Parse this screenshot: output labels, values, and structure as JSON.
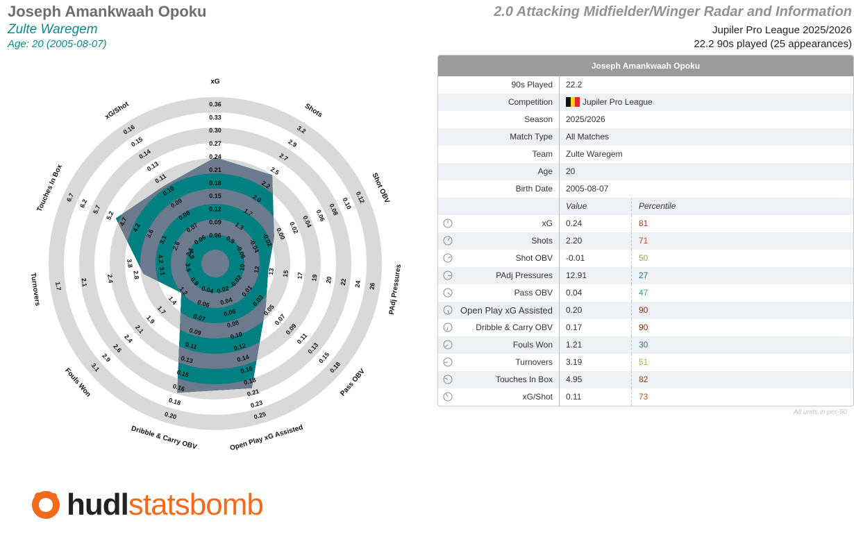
{
  "header": {
    "player_name": "Joseph Amankwaah Opoku",
    "team": "Zulte Waregem",
    "age_line": "Age: 20 (2005-08-07)",
    "radar_title": "2.0 Attacking Midfielder/Winger Radar and Information",
    "competition_line": "Jupiler Pro League 2025/2026",
    "minutes_line": "22.2 90s played (25 appearances)"
  },
  "colors": {
    "teal": "#008080",
    "slate": "#6b7a8c",
    "ring_gray": "#d8d8d8",
    "brand_orange": "#f26b1d"
  },
  "chart_data": {
    "type": "radar",
    "axes": [
      {
        "label": "xG",
        "ticks": [
          "0.06",
          "0.09",
          "0.12",
          "0.15",
          "0.18",
          "0.21",
          "0.24",
          "0.27",
          "0.30",
          "0.33",
          "0.36"
        ],
        "min": 0.03,
        "max": 0.36,
        "value": 0.24
      },
      {
        "label": "Shots",
        "ticks": [
          "0.9",
          "1.3",
          "1.7",
          "2.0",
          "2.2",
          "2.5",
          "2.7",
          "2.9",
          "3.2"
        ],
        "min": 0.5,
        "max": 3.2,
        "value": 2.2
      },
      {
        "label": "Shot OBV",
        "ticks": [
          "-0.06",
          "-0.04",
          "-0.02",
          "0.00",
          "0.02",
          "0.04",
          "0.06",
          "0.08",
          "0.10",
          "0.12"
        ],
        "min": -0.08,
        "max": 0.12,
        "value": -0.01
      },
      {
        "label": "PAdj Pressures",
        "ticks": [
          "10",
          "12",
          "13",
          "15",
          "17",
          "19",
          "20",
          "22",
          "24",
          "26"
        ],
        "min": 8,
        "max": 26,
        "value": 12.91
      },
      {
        "label": "Pass OBV",
        "ticks": [
          "-0.02",
          "0.01",
          "0.03",
          "0.05",
          "0.07",
          "0.09",
          "0.11",
          "0.13",
          "0.15",
          "0.18"
        ],
        "min": -0.04,
        "max": 0.18,
        "value": 0.04
      },
      {
        "label": "Open Play xG Assisted",
        "ticks": [
          "0.02",
          "0.04",
          "0.06",
          "0.08",
          "0.10",
          "0.12",
          "0.14",
          "0.16",
          "0.18",
          "0.21",
          "0.23",
          "0.25"
        ],
        "min": 0.0,
        "max": 0.25,
        "value": 0.2
      },
      {
        "label": "Dribble & Carry OBV",
        "ticks": [
          "0.04",
          "0.06",
          "0.07",
          "0.09",
          "0.11",
          "0.13",
          "0.15",
          "0.16",
          "0.18",
          "0.20"
        ],
        "min": 0.02,
        "max": 0.2,
        "value": 0.17
      },
      {
        "label": "Fouls Won",
        "ticks": [
          "0.9",
          "1.2",
          "1.4",
          "1.7",
          "1.9",
          "2.1",
          "2.4",
          "2.6",
          "2.9",
          "3.1"
        ],
        "min": 0.7,
        "max": 3.1,
        "value": 1.21
      },
      {
        "label": "Turnovers",
        "ticks": [
          "3.5",
          "3.1",
          "2.8",
          "2.4",
          "2.1",
          "1.7"
        ],
        "min": 4.2,
        "max": 1.7,
        "value": 3.19
      },
      {
        "label": "Touches In Box",
        "ticks": [
          "2.1",
          "2.6",
          "3.1",
          "3.6",
          "4.2",
          "4.7",
          "5.2",
          "5.7",
          "6.2",
          "6.7"
        ],
        "min": 1.6,
        "max": 6.7,
        "value": 4.95
      },
      {
        "label": "xG/Shot",
        "ticks": [
          "0.06",
          "0.07",
          "0.08",
          "0.09",
          "0.10",
          "0.11",
          "0.13",
          "0.14",
          "0.15",
          "0.16"
        ],
        "min": 0.05,
        "max": 0.16,
        "value": 0.11
      }
    ],
    "extra_tick_labels": {
      "Turnovers": [
        "4.9",
        "4.2",
        "3.8"
      ]
    },
    "grid": true
  },
  "table": {
    "title": "Joseph Amankwaah Opoku",
    "info_rows": [
      {
        "label": "90s Played",
        "value": "22.2"
      },
      {
        "label": "Competition",
        "value": "Jupiler Pro League",
        "flag": true
      },
      {
        "label": "Season",
        "value": "2025/2026"
      },
      {
        "label": "Match Type",
        "value": "All Matches"
      },
      {
        "label": "Team",
        "value": "Zulte Waregem"
      },
      {
        "label": "Age",
        "value": "20"
      },
      {
        "label": "Birth Date",
        "value": "2005-08-07"
      }
    ],
    "col_value": "Value",
    "col_percentile": "Percentile",
    "metric_rows": [
      {
        "label": "xG",
        "value": "0.24",
        "percentile": "81",
        "color": "#a33a1a",
        "icon": "xg-icon"
      },
      {
        "label": "Shots",
        "value": "2.20",
        "percentile": "71",
        "color": "#b8541f",
        "icon": "shots-icon"
      },
      {
        "label": "Shot OBV",
        "value": "-0.01",
        "percentile": "50",
        "color": "#9cae3a",
        "icon": "shot-obv-icon"
      },
      {
        "label": "PAdj Pressures",
        "value": "12.91",
        "percentile": "27",
        "color": "#2e6d8e",
        "icon": "pressures-icon"
      },
      {
        "label": "Pass OBV",
        "value": "0.04",
        "percentile": "47",
        "color": "#3aa89c",
        "icon": "pass-obv-icon"
      },
      {
        "label": "Open Play xG Assisted",
        "value": "0.20",
        "percentile": "90",
        "color": "#8b1d0f",
        "icon": "xg-assisted-icon"
      },
      {
        "label": "Dribble & Carry OBV",
        "value": "0.17",
        "percentile": "90",
        "color": "#8b1d0f",
        "icon": "dribble-icon"
      },
      {
        "label": "Fouls Won",
        "value": "1.21",
        "percentile": "30",
        "color": "#2e6d8e",
        "icon": "fouls-won-icon"
      },
      {
        "label": "Turnovers",
        "value": "3.19",
        "percentile": "51",
        "color": "#b3b335",
        "icon": "turnovers-icon"
      },
      {
        "label": "Touches In Box",
        "value": "4.95",
        "percentile": "82",
        "color": "#a33a1a",
        "icon": "touches-icon"
      },
      {
        "label": "xG/Shot",
        "value": "0.11",
        "percentile": "73",
        "color": "#b8541f",
        "icon": "xg-per-shot-icon"
      }
    ],
    "units_note": "All units in per-90"
  },
  "logo": {
    "part1": "hudl",
    "part2": "statsbomb"
  }
}
